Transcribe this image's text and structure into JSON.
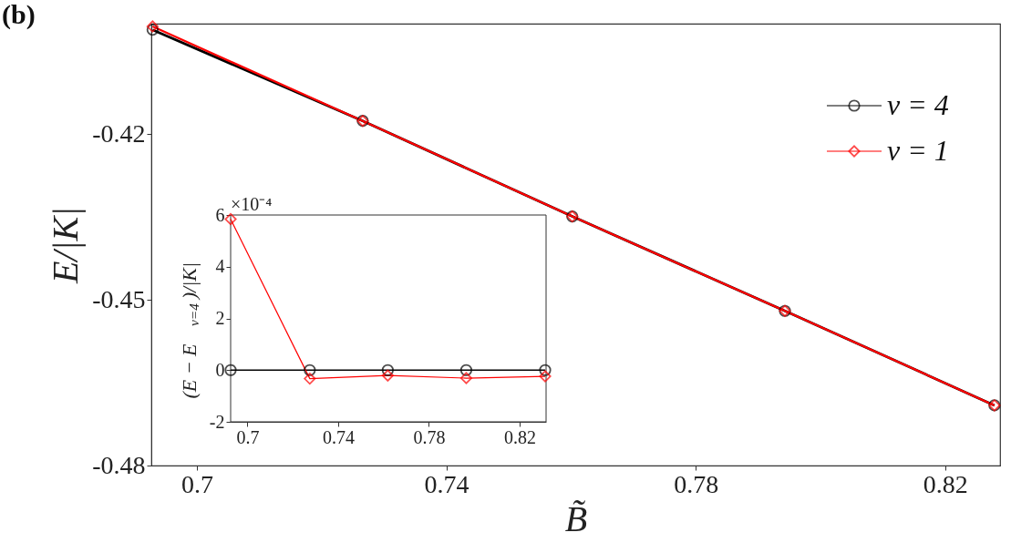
{
  "chart_data": [
    {
      "type": "line",
      "title": "(b)",
      "xlabel": "B̃",
      "ylabel": "E/|K|",
      "x": [
        0.6929,
        0.7266,
        0.7602,
        0.7943,
        0.8279
      ],
      "xlim": [
        0.6927,
        0.8288
      ],
      "ylim": [
        -0.48,
        -0.4
      ],
      "xticks": [
        0.7,
        0.74,
        0.78,
        0.82
      ],
      "yticks": [
        -0.48,
        -0.45,
        -0.42
      ],
      "legend": "top right",
      "grid": false,
      "line_style": "solid",
      "series": [
        {
          "name": "ν = 4",
          "color": "#000000",
          "marker": "circle",
          "values": [
            -0.4011,
            -0.4176,
            -0.4349,
            -0.452,
            -0.4691
          ]
        },
        {
          "name": "ν = 1",
          "color": "#ff0000",
          "marker": "diamond",
          "values": [
            -0.4005,
            -0.4176,
            -0.4349,
            -0.452,
            -0.4691
          ]
        }
      ]
    },
    {
      "type": "line",
      "ylabel": "(E − E$_{ν=4}$)/|K|",
      "annotations": [
        "×10⁻⁴"
      ],
      "x": [
        0.6926,
        0.7275,
        0.7619,
        0.7965,
        0.8313
      ],
      "xlim": [
        0.6926,
        0.8317
      ],
      "ylim": [
        -2,
        6
      ],
      "xticks": [
        0.7,
        0.74,
        0.78,
        0.82
      ],
      "yticks": [
        -2,
        0,
        2,
        4,
        6
      ],
      "grid": false,
      "line_style": "solid",
      "series": [
        {
          "color": "#000000",
          "marker": "circle",
          "values": [
            0,
            0,
            0,
            0,
            0
          ]
        },
        {
          "color": "#ff0000",
          "marker": "diamond",
          "values": [
            5.84,
            -0.33,
            -0.21,
            -0.31,
            -0.24
          ]
        }
      ]
    }
  ]
}
